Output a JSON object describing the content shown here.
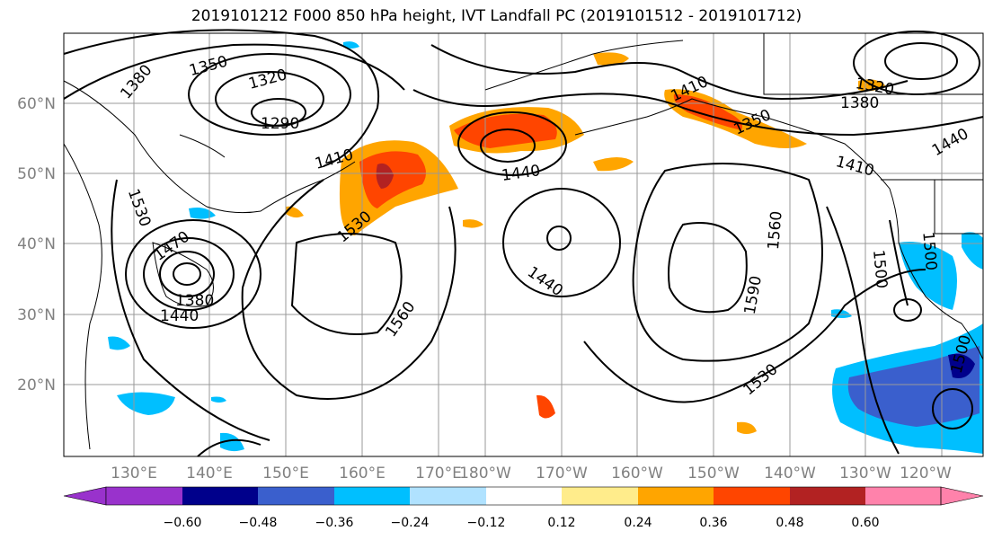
{
  "title": "2019101212 F000 850 hPa height, IVT Landfall PC (2019101512 - 2019101712)",
  "map": {
    "lat_labels": [
      "60°N",
      "50°N",
      "40°N",
      "30°N",
      "20°N"
    ],
    "lon_labels": [
      "130°E",
      "140°E",
      "150°E",
      "160°E",
      "170°E",
      "180°W",
      "170°W",
      "160°W",
      "150°W",
      "140°W",
      "130°W",
      "120°W"
    ],
    "contour_labels": [
      "1380",
      "1350",
      "1320",
      "1290",
      "1410",
      "1440",
      "1410",
      "1350",
      "1320",
      "1380",
      "1440",
      "1410",
      "1530",
      "1470",
      "1380",
      "1440",
      "1530",
      "1560",
      "1440",
      "1560",
      "1590",
      "1530",
      "1500",
      "1500",
      "1500"
    ]
  },
  "colorbar": {
    "ticks": [
      "−0.60",
      "−0.48",
      "−0.36",
      "−0.24",
      "−0.12",
      "0.12",
      "0.24",
      "0.36",
      "0.48",
      "0.60"
    ],
    "colors": [
      "#9932cc",
      "#00008b",
      "#3a5fcd",
      "#00bfff",
      "#b0e2ff",
      "#ffffff",
      "#ffec8b",
      "#ffa500",
      "#ff4500",
      "#b22222",
      "#ff82ab"
    ]
  }
}
